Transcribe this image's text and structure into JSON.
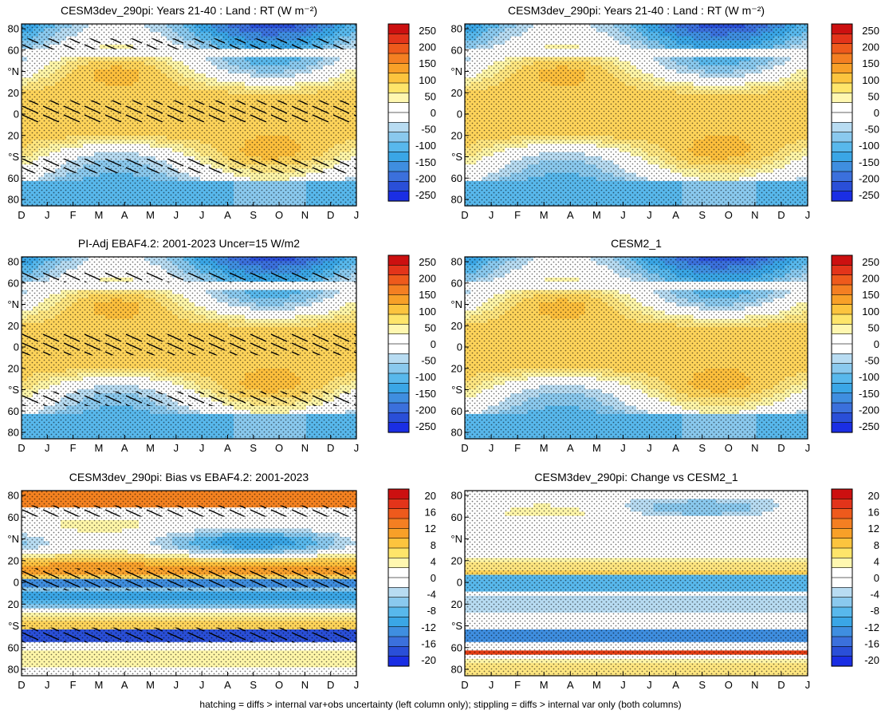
{
  "footer": "hatching = diffs > internal var+obs uncertainty (left column only); stippling = diffs > internal var only (both columns)",
  "chart_data": [
    {
      "type": "heatmap",
      "title": "CESM3dev_290pi: Years 21-40 : Land : RT (W m⁻²)",
      "xticks": [
        "D",
        "J",
        "F",
        "M",
        "A",
        "M",
        "J",
        "J",
        "A",
        "S",
        "O",
        "N",
        "D",
        "J"
      ],
      "yticks": [
        "80",
        "60",
        "°N",
        "20",
        "0",
        "20",
        "°S",
        "60",
        "80"
      ],
      "colorbar": [
        "250",
        "200",
        "150",
        "100",
        "50",
        "0",
        "-50",
        "-100",
        "-150",
        "-200",
        "-250"
      ],
      "hatched": true,
      "field": "rt"
    },
    {
      "type": "heatmap",
      "title": "CESM3dev_290pi: Years 21-40 : Land : RT (W m⁻²)",
      "xticks": [
        "D",
        "J",
        "F",
        "M",
        "A",
        "M",
        "J",
        "J",
        "A",
        "S",
        "O",
        "N",
        "D",
        "J"
      ],
      "yticks": [
        "80",
        "60",
        "°N",
        "20",
        "0",
        "20",
        "°S",
        "60",
        "80"
      ],
      "colorbar": [
        "250",
        "200",
        "150",
        "100",
        "50",
        "0",
        "-50",
        "-100",
        "-150",
        "-200",
        "-250"
      ],
      "hatched": false,
      "field": "rt"
    },
    {
      "type": "heatmap",
      "title": "PI-Adj EBAF4.2: 2001-2023 Uncer=15 W/m2",
      "xticks": [
        "D",
        "J",
        "F",
        "M",
        "A",
        "M",
        "J",
        "J",
        "A",
        "S",
        "O",
        "N",
        "D",
        "J"
      ],
      "yticks": [
        "80",
        "60",
        "°N",
        "20",
        "0",
        "20",
        "°S",
        "60",
        "80"
      ],
      "colorbar": [
        "250",
        "200",
        "150",
        "100",
        "50",
        "0",
        "-50",
        "-100",
        "-150",
        "-200",
        "-250"
      ],
      "hatched": true,
      "field": "rt"
    },
    {
      "type": "heatmap",
      "title": "CESM2_1",
      "xticks": [
        "D",
        "J",
        "F",
        "M",
        "A",
        "M",
        "J",
        "J",
        "A",
        "S",
        "O",
        "N",
        "D",
        "J"
      ],
      "yticks": [
        "80",
        "60",
        "°N",
        "20",
        "0",
        "20",
        "°S",
        "60",
        "80"
      ],
      "colorbar": [
        "250",
        "200",
        "150",
        "100",
        "50",
        "0",
        "-50",
        "-100",
        "-150",
        "-200",
        "-250"
      ],
      "hatched": false,
      "field": "rt"
    },
    {
      "type": "heatmap",
      "title": "CESM3dev_290pi: Bias vs EBAF4.2: 2001-2023",
      "xticks": [
        "D",
        "J",
        "F",
        "M",
        "A",
        "M",
        "J",
        "J",
        "A",
        "S",
        "O",
        "N",
        "D",
        "J"
      ],
      "yticks": [
        "80",
        "60",
        "°N",
        "20",
        "0",
        "20",
        "°S",
        "60",
        "80"
      ],
      "colorbar": [
        "20",
        "16",
        "12",
        "8",
        "4",
        "0",
        "-4",
        "-8",
        "-12",
        "-16",
        "-20"
      ],
      "hatched": true,
      "field": "bias"
    },
    {
      "type": "heatmap",
      "title": "CESM3dev_290pi: Change vs CESM2_1",
      "xticks": [
        "D",
        "J",
        "F",
        "M",
        "A",
        "M",
        "J",
        "J",
        "A",
        "S",
        "O",
        "N",
        "D",
        "J"
      ],
      "yticks": [
        "80",
        "60",
        "°N",
        "20",
        "0",
        "20",
        "°S",
        "60",
        "80"
      ],
      "colorbar": [
        "20",
        "16",
        "12",
        "8",
        "4",
        "0",
        "-4",
        "-8",
        "-12",
        "-16",
        "-20"
      ],
      "hatched": false,
      "field": "change"
    }
  ],
  "colors": {
    "scale": [
      "#1f1fe6",
      "#2a4fd8",
      "#3b70dc",
      "#3f8ee0",
      "#3aa6e6",
      "#58b8ec",
      "#8ac9ee",
      "#b8dcf2",
      "#ffffff",
      "#ffffff",
      "#fff6a8",
      "#ffe680",
      "#ffd45a",
      "#fdbf3c",
      "#f9a12b",
      "#f58220",
      "#ef6118",
      "#e23b12",
      "#c9140c"
    ],
    "land_gap": "#ffffff"
  }
}
